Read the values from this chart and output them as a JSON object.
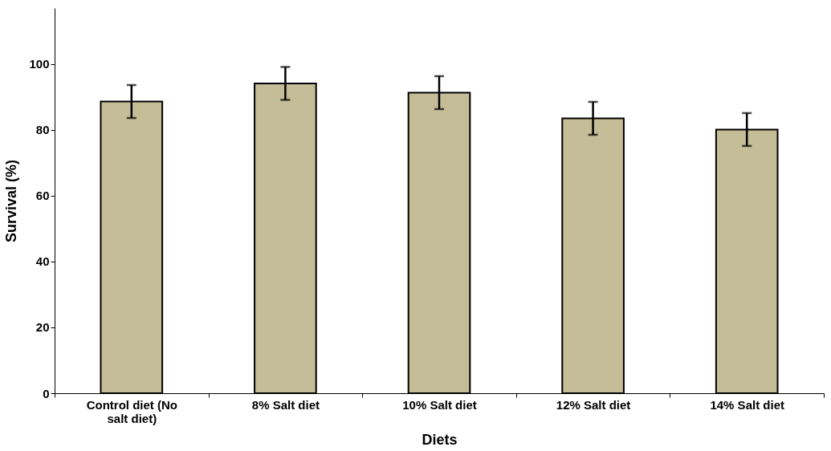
{
  "chart_data": {
    "type": "bar",
    "xlabel": "Diets",
    "ylabel": "Survival (%)",
    "categories": [
      "Control diet (No salt diet)",
      "8% Salt diet",
      "10% Salt diet",
      "12% Salt diet",
      "14% Salt diet"
    ],
    "values": [
      88.6,
      94.1,
      91.3,
      83.5,
      80.1
    ],
    "errors": [
      5,
      5,
      5,
      5,
      5
    ],
    "color": "#c4bd97",
    "ylim": [
      0,
      117
    ],
    "yticks": [
      0,
      20,
      40,
      60,
      80,
      100
    ],
    "grid": false
  }
}
